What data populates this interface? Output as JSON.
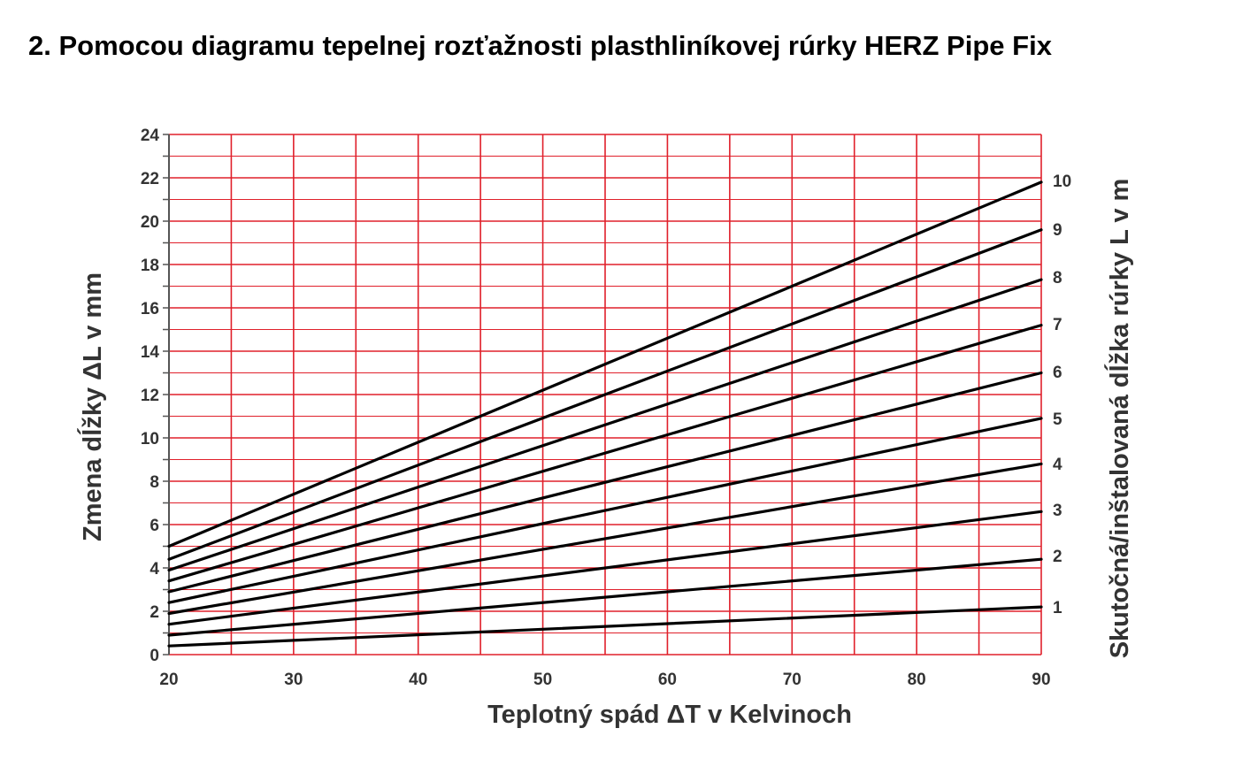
{
  "page": {
    "heading": "2. Pomocou diagramu tepelnej rozťažnosti plasthliníkovej rúrky HERZ Pipe Fix"
  },
  "chart_data": {
    "type": "line",
    "xlabel": "Teplotný spád ΔT v Kelvinoch",
    "ylabel": "Zmena dĺžky ΔL v mm",
    "y2label": "Skutočná/inštalovaná dĺžka rúrky L v m",
    "xlim": [
      20,
      90
    ],
    "ylim": [
      0,
      24
    ],
    "x_ticks": [
      20,
      30,
      40,
      50,
      60,
      70,
      80,
      90
    ],
    "y_ticks": [
      0,
      2,
      4,
      6,
      8,
      10,
      12,
      14,
      16,
      18,
      20,
      22,
      24
    ],
    "grid": true,
    "grid_color": "#e0202b",
    "line_color": "#000000",
    "right_axis_labels": [
      "1",
      "2",
      "3",
      "4",
      "5",
      "6",
      "7",
      "8",
      "9",
      "10"
    ],
    "series": [
      {
        "name": "1",
        "x": [
          20,
          90
        ],
        "y": [
          0.4,
          2.2
        ]
      },
      {
        "name": "2",
        "x": [
          20,
          90
        ],
        "y": [
          0.9,
          4.4
        ]
      },
      {
        "name": "3",
        "x": [
          20,
          90
        ],
        "y": [
          1.4,
          6.6
        ]
      },
      {
        "name": "4",
        "x": [
          20,
          90
        ],
        "y": [
          1.9,
          8.8
        ]
      },
      {
        "name": "5",
        "x": [
          20,
          90
        ],
        "y": [
          2.4,
          10.9
        ]
      },
      {
        "name": "6",
        "x": [
          20,
          90
        ],
        "y": [
          2.9,
          13.0
        ]
      },
      {
        "name": "7",
        "x": [
          20,
          90
        ],
        "y": [
          3.4,
          15.2
        ]
      },
      {
        "name": "8",
        "x": [
          20,
          90
        ],
        "y": [
          3.9,
          17.3
        ]
      },
      {
        "name": "9",
        "x": [
          20,
          90
        ],
        "y": [
          4.4,
          19.6
        ]
      },
      {
        "name": "10",
        "x": [
          20,
          90
        ],
        "y": [
          5.0,
          21.8
        ]
      }
    ]
  }
}
